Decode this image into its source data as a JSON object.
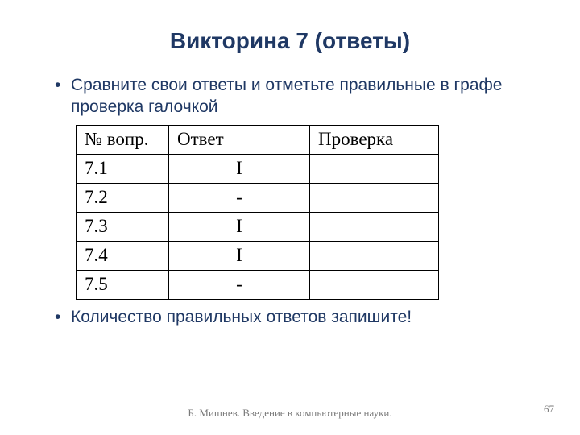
{
  "title": "Викторина 7 (ответы)",
  "bullets": {
    "intro": "Сравните свои ответы и отметьте правильные в графе проверка галочкой",
    "after": "Количество правильных ответов запишите!"
  },
  "table": {
    "headers": {
      "num": "№ вопр.",
      "answer": "Ответ",
      "check": "Проверка"
    },
    "rows": [
      {
        "num": "7.1",
        "answer": "I",
        "check": ""
      },
      {
        "num": "7.2",
        "answer": "-",
        "check": ""
      },
      {
        "num": "7.3",
        "answer": "I",
        "check": ""
      },
      {
        "num": "7.4",
        "answer": "I",
        "check": ""
      },
      {
        "num": "7.5",
        "answer": "-",
        "check": ""
      }
    ]
  },
  "footer": "Б. Мишнев. Введение в компьютерные науки.",
  "page": "67"
}
